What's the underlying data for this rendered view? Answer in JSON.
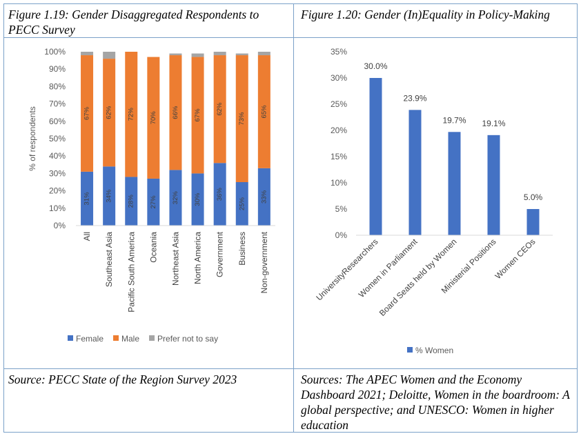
{
  "left_panel": {
    "caption": "Figure 1.19: Gender Disaggregated Respondents to PECC Survey",
    "source": "Source: PECC State of the Region Survey 2023"
  },
  "right_panel": {
    "caption": "Figure 1.20: Gender (In)Equality in Policy-Making",
    "source": "Sources: The APEC Women and the Economy Dashboard 2021; Deloitte, Women in the boardroom: A global perspective; and UNESCO: Women in higher education"
  },
  "chart_data": [
    {
      "type": "bar",
      "stacked": true,
      "categories": [
        "All",
        "Southeast Asia",
        "Pacific South America",
        "Oceania",
        "Northeast Asia",
        "North America",
        "Government",
        "Business",
        "Non-government"
      ],
      "series": [
        {
          "name": "Female",
          "color": "#4472c4",
          "values": [
            31,
            34,
            28,
            27,
            32,
            30,
            36,
            25,
            33
          ],
          "labels": [
            "31%",
            "34%",
            "28%",
            "27%",
            "32%",
            "30%",
            "36%",
            "25%",
            "33%"
          ]
        },
        {
          "name": "Male",
          "color": "#ed7d31",
          "values": [
            67,
            62,
            72,
            70,
            66,
            67,
            62,
            73,
            65
          ],
          "labels": [
            "67%",
            "62%",
            "72%",
            "70%",
            "66%",
            "67%",
            "62%",
            "73%",
            "65%"
          ]
        },
        {
          "name": "Prefer not to say",
          "color": "#a5a5a5",
          "values": [
            2,
            4,
            0,
            0,
            1,
            2,
            2,
            1,
            2
          ]
        }
      ],
      "ylabel": "% of respondents",
      "ylim": [
        0,
        100
      ],
      "yticks": [
        "0%",
        "10%",
        "20%",
        "30%",
        "40%",
        "50%",
        "60%",
        "70%",
        "80%",
        "90%",
        "100%"
      ],
      "grid": false,
      "legend_position": "bottom"
    },
    {
      "type": "bar",
      "categories": [
        "UniversityResearchers",
        "Women in Parliament",
        "Board Seats held by Women",
        "Ministerial Positions",
        "Women CEOs"
      ],
      "series": [
        {
          "name": "% Women",
          "color": "#4472c4",
          "values": [
            30.0,
            23.9,
            19.7,
            19.1,
            5.0
          ],
          "labels": [
            "30.0%",
            "23.9%",
            "19.7%",
            "19.1%",
            "5.0%"
          ]
        }
      ],
      "ylim": [
        0,
        35
      ],
      "yticks": [
        "0%",
        "5%",
        "10%",
        "15%",
        "20%",
        "25%",
        "30%",
        "35%"
      ],
      "grid": false,
      "legend_position": "bottom"
    }
  ]
}
